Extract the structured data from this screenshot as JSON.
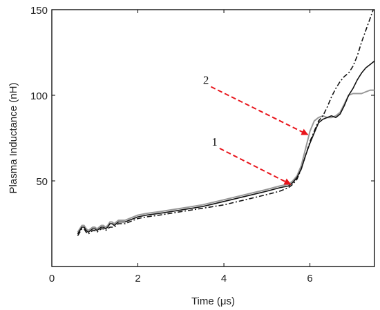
{
  "chart_data": {
    "type": "line",
    "title": "",
    "xlabel": "Time (μs)",
    "ylabel": "Plasma Inductance (nH)",
    "xlim": [
      0,
      7.5
    ],
    "ylim": [
      0,
      150
    ],
    "xticks": [
      0,
      2,
      4,
      6
    ],
    "yticks": [
      50,
      100,
      150
    ],
    "grid": false,
    "legend": "none",
    "series": [
      {
        "color": "#111111",
        "dash": "solid",
        "x": [
          0.6,
          0.65,
          0.7,
          0.75,
          0.8,
          0.85,
          0.9,
          0.95,
          1.0,
          1.05,
          1.1,
          1.15,
          1.2,
          1.25,
          1.3,
          1.35,
          1.4,
          1.45,
          1.5,
          1.55,
          1.6,
          1.65,
          1.7,
          1.8,
          1.9,
          2.0,
          2.2,
          2.5,
          3.0,
          3.5,
          4.0,
          4.5,
          5.0,
          5.3,
          5.5,
          5.6,
          5.7,
          5.8,
          5.9,
          6.0,
          6.1,
          6.2,
          6.3,
          6.4,
          6.5,
          6.6,
          6.7,
          6.8,
          6.9,
          7.0,
          7.1,
          7.2,
          7.3,
          7.4,
          7.5
        ],
        "y": [
          19,
          21,
          23,
          23,
          21,
          20,
          21,
          22,
          22,
          21,
          22,
          23,
          23,
          22,
          23,
          25,
          25,
          24,
          25,
          26,
          26,
          26,
          26,
          27,
          28,
          29,
          30,
          31,
          33,
          35,
          38,
          41,
          44,
          46,
          47,
          49,
          52,
          57,
          65,
          72,
          78,
          84,
          86,
          87,
          88,
          87,
          89,
          94,
          100,
          104,
          109,
          113,
          116,
          118,
          120
        ]
      },
      {
        "color": "#999999",
        "dash": "solid",
        "x": [
          0.6,
          0.65,
          0.7,
          0.75,
          0.8,
          0.85,
          0.9,
          0.95,
          1.0,
          1.05,
          1.1,
          1.15,
          1.2,
          1.25,
          1.3,
          1.35,
          1.4,
          1.45,
          1.5,
          1.55,
          1.6,
          1.65,
          1.7,
          1.8,
          1.9,
          2.0,
          2.2,
          2.5,
          3.0,
          3.5,
          4.0,
          4.5,
          5.0,
          5.3,
          5.5,
          5.6,
          5.7,
          5.8,
          5.9,
          6.0,
          6.1,
          6.2,
          6.3,
          6.4,
          6.5,
          6.6,
          6.7,
          6.8,
          6.9,
          7.0,
          7.1,
          7.2,
          7.3,
          7.4,
          7.5
        ],
        "y": [
          20,
          22,
          24,
          24,
          22,
          21,
          22,
          23,
          23,
          22,
          23,
          24,
          24,
          23,
          24,
          26,
          26,
          25,
          26,
          27,
          27,
          27,
          27,
          28,
          29,
          30,
          31,
          32,
          34,
          36,
          39,
          42,
          45,
          47,
          48,
          50,
          53,
          59,
          69,
          79,
          85,
          87,
          88,
          87,
          87,
          88,
          90,
          95,
          100,
          101,
          101,
          101,
          102,
          103,
          103
        ]
      },
      {
        "color": "#111111",
        "dash": "dashdot",
        "x": [
          0.6,
          0.65,
          0.7,
          0.75,
          0.8,
          0.85,
          0.9,
          0.95,
          1.0,
          1.05,
          1.1,
          1.15,
          1.2,
          1.25,
          1.3,
          1.35,
          1.4,
          1.45,
          1.5,
          1.55,
          1.6,
          1.65,
          1.7,
          1.8,
          1.9,
          2.0,
          2.2,
          2.5,
          3.0,
          3.5,
          4.0,
          4.5,
          5.0,
          5.3,
          5.5,
          5.6,
          5.7,
          5.8,
          5.9,
          6.0,
          6.1,
          6.2,
          6.3,
          6.4,
          6.5,
          6.6,
          6.7,
          6.8,
          6.9,
          7.0,
          7.1,
          7.2,
          7.3,
          7.4,
          7.5
        ],
        "y": [
          18,
          20,
          22,
          22,
          20,
          19,
          20,
          21,
          21,
          20,
          21,
          22,
          22,
          21,
          22,
          23,
          23,
          23,
          24,
          25,
          25,
          25,
          25,
          26,
          27,
          28,
          29,
          30,
          32,
          34,
          36,
          39,
          42,
          44,
          46,
          48,
          51,
          57,
          65,
          73,
          79,
          85,
          88,
          93,
          99,
          104,
          108,
          111,
          113,
          117,
          123,
          131,
          138,
          145,
          152
        ]
      }
    ],
    "annotations": [
      {
        "label": "1",
        "from": [
          3.9,
          69
        ],
        "to": [
          5.55,
          48
        ]
      },
      {
        "label": "2",
        "from": [
          3.7,
          105
        ],
        "to": [
          5.95,
          77
        ]
      }
    ]
  }
}
